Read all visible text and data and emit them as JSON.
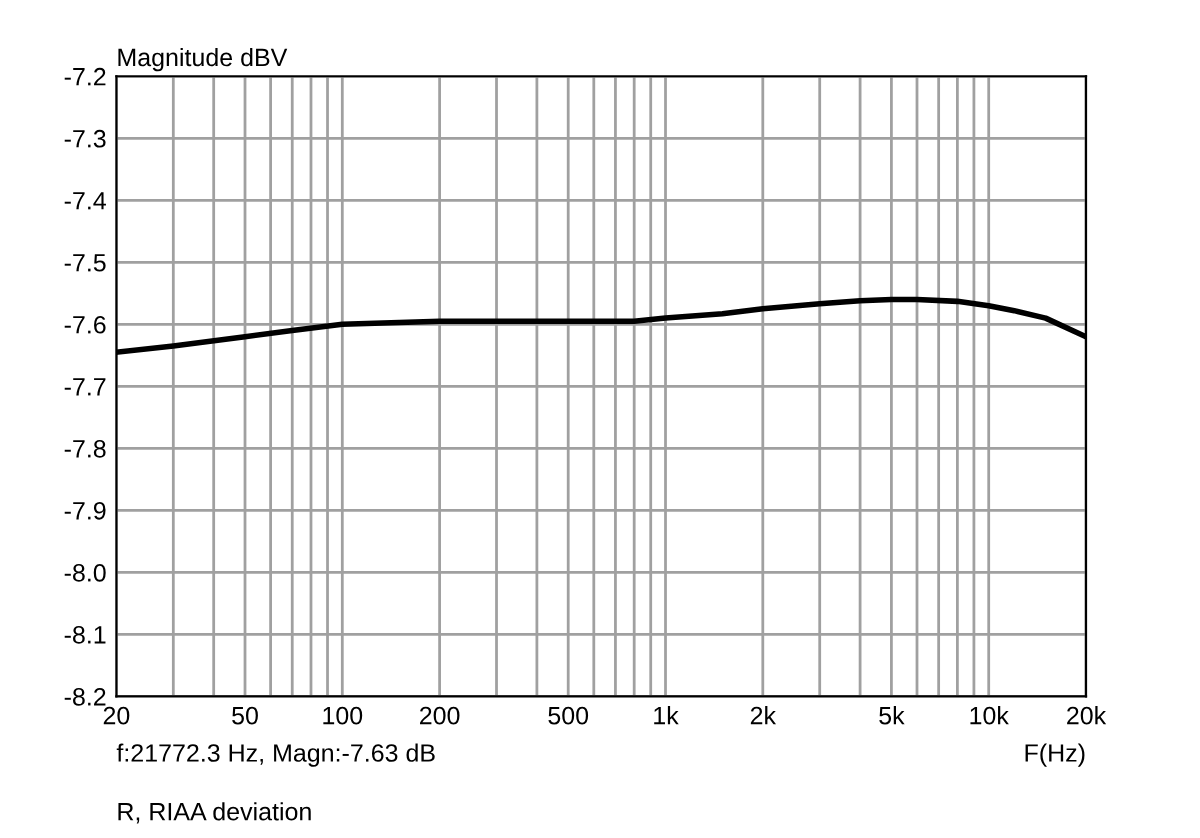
{
  "chart_data": {
    "type": "line",
    "ylabel": "Magnitude dBV",
    "xlabel": "F(Hz)",
    "log": "x",
    "grid": true,
    "line_style": "solid",
    "marker": "none",
    "x": [
      20,
      30,
      50,
      70,
      100,
      150,
      200,
      300,
      500,
      800,
      1000,
      1500,
      2000,
      3000,
      4000,
      5000,
      6000,
      8000,
      10000,
      12000,
      15000,
      20000
    ],
    "series": [
      {
        "color": "#000000",
        "values": [
          -7.645,
          -7.635,
          -7.62,
          -7.61,
          -7.6,
          -7.597,
          -7.595,
          -7.595,
          -7.595,
          -7.595,
          -7.59,
          -7.583,
          -7.575,
          -7.567,
          -7.562,
          -7.56,
          -7.56,
          -7.563,
          -7.57,
          -7.578,
          -7.59,
          -7.62
        ]
      }
    ],
    "xlim": [
      20,
      20000
    ],
    "ylim": [
      -8.2,
      -7.2
    ],
    "xticks": [
      20,
      {
        "value": 30,
        "label": null
      },
      {
        "value": 40,
        "label": null
      },
      50,
      {
        "value": 60,
        "label": null
      },
      {
        "value": 70,
        "label": null
      },
      {
        "value": 80,
        "label": null
      },
      {
        "value": 90,
        "label": null
      },
      100,
      200,
      {
        "value": 300,
        "label": null
      },
      {
        "value": 400,
        "label": null
      },
      500,
      {
        "value": 600,
        "label": null
      },
      {
        "value": 700,
        "label": null
      },
      {
        "value": 800,
        "label": null
      },
      {
        "value": 900,
        "label": null
      },
      {
        "value": 1000,
        "label": "1k"
      },
      {
        "value": 2000,
        "label": "2k"
      },
      {
        "value": 3000,
        "label": null
      },
      {
        "value": 4000,
        "label": null
      },
      {
        "value": 5000,
        "label": "5k"
      },
      {
        "value": 6000,
        "label": null
      },
      {
        "value": 7000,
        "label": null
      },
      {
        "value": 8000,
        "label": null
      },
      {
        "value": 9000,
        "label": null
      },
      {
        "value": 10000,
        "label": "10k"
      },
      {
        "value": 20000,
        "label": "20k"
      }
    ],
    "yticks": [
      -8.2,
      -8.1,
      {
        "value": -8.0,
        "label": "-8.0"
      },
      -7.9,
      -7.8,
      -7.7,
      -7.6,
      -7.5,
      -7.4,
      -7.3,
      -7.2
    ],
    "annotations": [
      "f:21772.3 Hz, Magn:-7.63 dB",
      "R, RIAA deviation"
    ]
  }
}
